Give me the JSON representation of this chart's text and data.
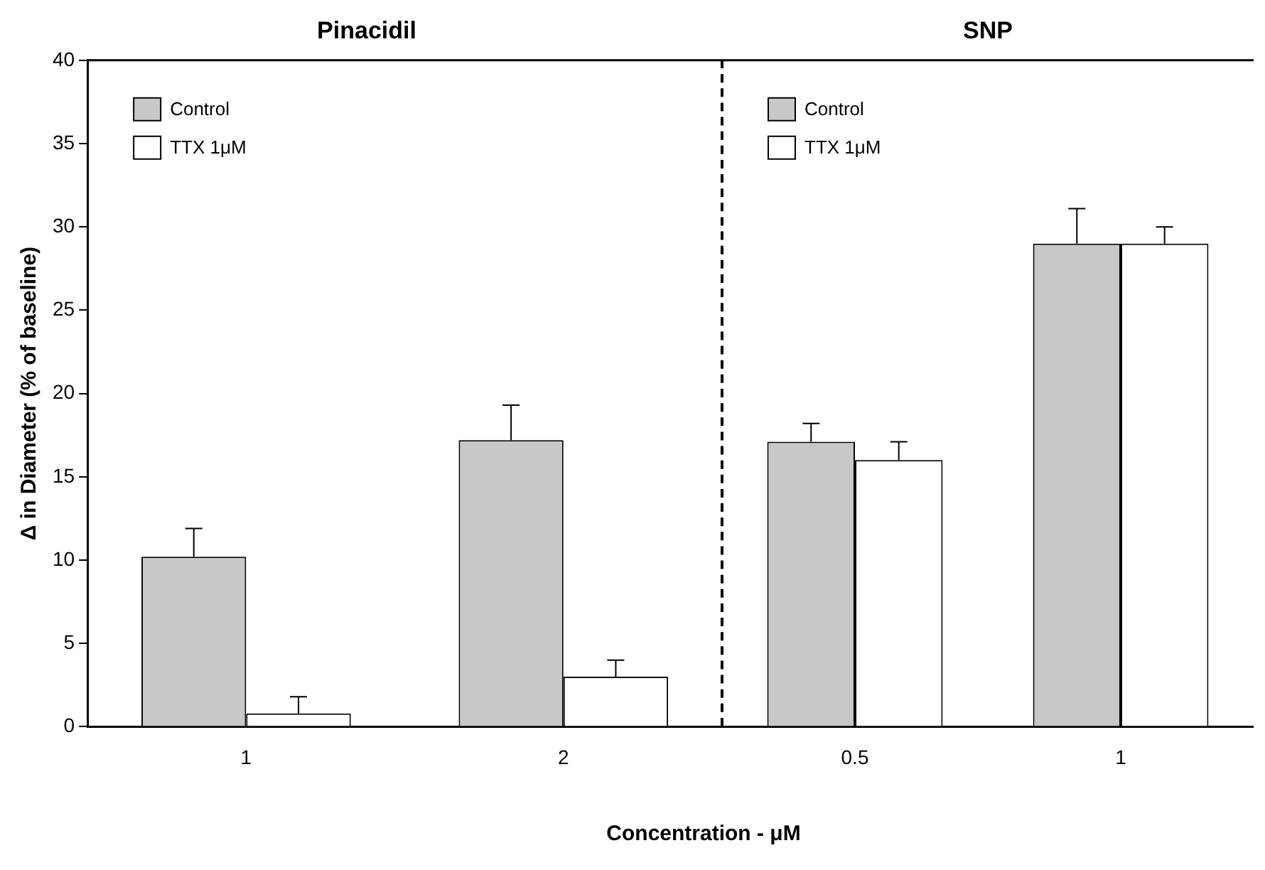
{
  "chart_data": [
    {
      "type": "bar",
      "title": "Pinacidil",
      "xlabel": "Concentration - μM",
      "ylabel": "Δ in Diameter (% of baseline)",
      "categories": [
        "1",
        "2"
      ],
      "series": [
        {
          "name": "Control",
          "color": "#c8c8c8",
          "values": [
            10.2,
            17.2
          ],
          "errors": [
            1.7,
            2.1
          ]
        },
        {
          "name": "TTX 1μM",
          "color": "#ffffff",
          "values": [
            0.8,
            3.0
          ],
          "errors": [
            1.0,
            1.0
          ]
        }
      ],
      "ylim": [
        0,
        40
      ],
      "yticks": [
        0,
        5,
        10,
        15,
        20,
        25,
        30,
        35,
        40
      ],
      "legend": "top left",
      "grid": false
    },
    {
      "type": "bar",
      "title": "SNP",
      "categories": [
        "0.5",
        "1"
      ],
      "series": [
        {
          "name": "Control",
          "color": "#c8c8c8",
          "values": [
            17.1,
            29.0
          ],
          "errors": [
            1.1,
            2.1
          ]
        },
        {
          "name": "TTX 1μM",
          "color": "#ffffff",
          "values": [
            16.0,
            29.0
          ],
          "errors": [
            1.1,
            1.0
          ]
        }
      ],
      "ylim": [
        0,
        40
      ],
      "yticks": [
        0,
        5,
        10,
        15,
        20,
        25,
        30,
        35,
        40
      ],
      "tick_labels": "x",
      "legend": "top left",
      "grid": false
    }
  ]
}
